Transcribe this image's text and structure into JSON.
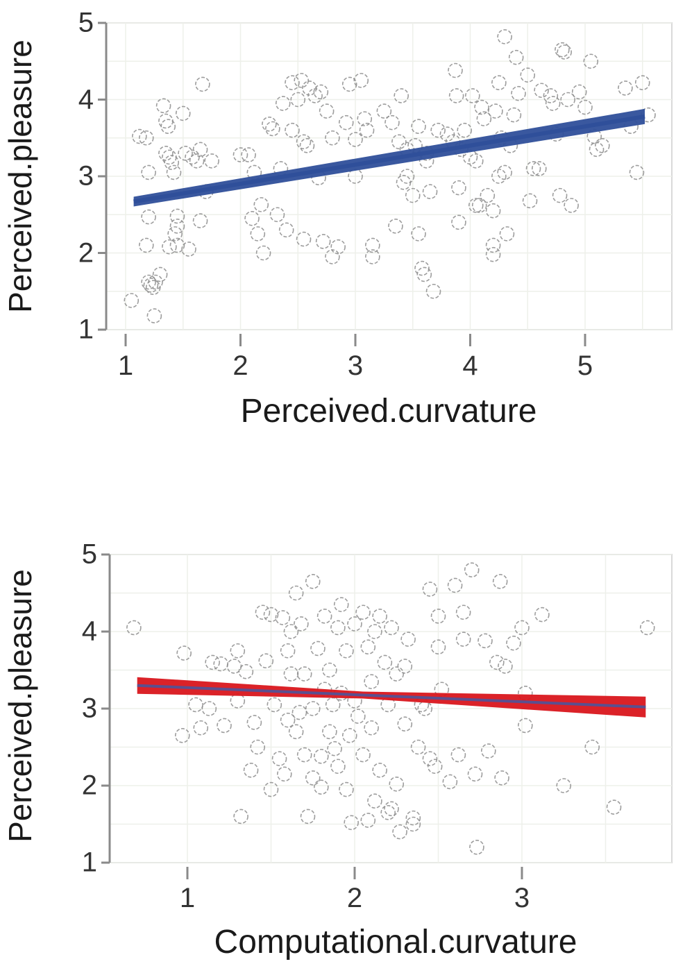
{
  "chart_data": [
    {
      "type": "scatter",
      "title": "",
      "xlabel": "Perceived.curvature",
      "ylabel": "Perceived.pleasure",
      "xlim": [
        0.85,
        5.75
      ],
      "ylim": [
        1,
        5
      ],
      "xticks": [
        "1",
        "2",
        "3",
        "4",
        "5"
      ],
      "yticks": [
        "1",
        "2",
        "3",
        "4",
        "5"
      ],
      "grid": true,
      "marker": "hollow-circle",
      "marker_color": "#8c8c8c",
      "fit_line": {
        "x": [
          1.07,
          5.52
        ],
        "y": [
          2.67,
          3.78
        ],
        "color": "#2f4f9a",
        "ci_color": "#2f4f9a"
      },
      "points": [
        [
          1.05,
          1.38
        ],
        [
          1.12,
          3.52
        ],
        [
          1.18,
          3.5
        ],
        [
          1.2,
          3.05
        ],
        [
          1.18,
          2.1
        ],
        [
          1.2,
          2.47
        ],
        [
          1.2,
          1.62
        ],
        [
          1.22,
          1.58
        ],
        [
          1.24,
          1.55
        ],
        [
          1.26,
          1.62
        ],
        [
          1.25,
          1.18
        ],
        [
          1.3,
          1.72
        ],
        [
          1.33,
          3.92
        ],
        [
          1.35,
          3.72
        ],
        [
          1.37,
          3.65
        ],
        [
          1.38,
          3.25
        ],
        [
          1.35,
          3.3
        ],
        [
          1.4,
          3.18
        ],
        [
          1.42,
          3.05
        ],
        [
          1.38,
          2.08
        ],
        [
          1.45,
          2.35
        ],
        [
          1.45,
          2.48
        ],
        [
          1.43,
          2.25
        ],
        [
          1.45,
          2.1
        ],
        [
          1.5,
          3.82
        ],
        [
          1.52,
          3.3
        ],
        [
          1.55,
          2.05
        ],
        [
          1.58,
          3.25
        ],
        [
          1.62,
          3.2
        ],
        [
          1.65,
          3.35
        ],
        [
          1.65,
          2.42
        ],
        [
          1.67,
          4.2
        ],
        [
          1.7,
          2.8
        ],
        [
          1.75,
          3.2
        ],
        [
          2.0,
          3.28
        ],
        [
          2.07,
          3.28
        ],
        [
          2.1,
          2.45
        ],
        [
          2.12,
          3.05
        ],
        [
          2.15,
          2.25
        ],
        [
          2.18,
          2.63
        ],
        [
          2.2,
          2.0
        ],
        [
          2.25,
          3.68
        ],
        [
          2.28,
          3.62
        ],
        [
          2.32,
          2.5
        ],
        [
          2.35,
          3.1
        ],
        [
          2.37,
          3.95
        ],
        [
          2.4,
          2.3
        ],
        [
          2.45,
          3.6
        ],
        [
          2.45,
          4.22
        ],
        [
          2.5,
          4.0
        ],
        [
          2.53,
          4.25
        ],
        [
          2.55,
          3.45
        ],
        [
          2.55,
          2.18
        ],
        [
          2.58,
          3.4
        ],
        [
          2.6,
          4.15
        ],
        [
          2.65,
          4.05
        ],
        [
          2.68,
          2.98
        ],
        [
          2.7,
          4.1
        ],
        [
          2.72,
          2.15
        ],
        [
          2.75,
          3.85
        ],
        [
          2.8,
          3.5
        ],
        [
          2.8,
          1.95
        ],
        [
          2.85,
          2.08
        ],
        [
          2.92,
          3.7
        ],
        [
          2.95,
          4.2
        ],
        [
          3.0,
          3.48
        ],
        [
          3.0,
          3.0
        ],
        [
          3.05,
          4.25
        ],
        [
          3.08,
          3.75
        ],
        [
          3.1,
          3.6
        ],
        [
          3.15,
          2.1
        ],
        [
          3.15,
          1.95
        ],
        [
          3.25,
          3.85
        ],
        [
          3.32,
          3.7
        ],
        [
          3.35,
          2.35
        ],
        [
          3.38,
          3.45
        ],
        [
          3.4,
          4.05
        ],
        [
          3.42,
          2.92
        ],
        [
          3.45,
          3.35
        ],
        [
          3.45,
          3.0
        ],
        [
          3.5,
          2.75
        ],
        [
          3.52,
          3.4
        ],
        [
          3.55,
          3.65
        ],
        [
          3.55,
          2.25
        ],
        [
          3.58,
          1.8
        ],
        [
          3.6,
          1.72
        ],
        [
          3.62,
          3.3
        ],
        [
          3.62,
          3.2
        ],
        [
          3.65,
          2.8
        ],
        [
          3.68,
          1.5
        ],
        [
          3.72,
          3.6
        ],
        [
          3.8,
          3.55
        ],
        [
          3.85,
          3.45
        ],
        [
          3.87,
          4.38
        ],
        [
          3.88,
          4.05
        ],
        [
          3.9,
          2.85
        ],
        [
          3.9,
          2.4
        ],
        [
          3.92,
          3.35
        ],
        [
          3.95,
          3.6
        ],
        [
          4.0,
          3.25
        ],
        [
          4.02,
          4.05
        ],
        [
          4.05,
          2.62
        ],
        [
          4.05,
          3.2
        ],
        [
          4.08,
          2.62
        ],
        [
          4.1,
          3.9
        ],
        [
          4.12,
          3.75
        ],
        [
          4.15,
          2.75
        ],
        [
          4.2,
          2.55
        ],
        [
          4.2,
          2.1
        ],
        [
          4.2,
          1.98
        ],
        [
          4.22,
          3.85
        ],
        [
          4.25,
          4.22
        ],
        [
          4.25,
          3.0
        ],
        [
          4.27,
          3.5
        ],
        [
          4.3,
          4.82
        ],
        [
          4.3,
          3.05
        ],
        [
          4.32,
          2.25
        ],
        [
          4.35,
          3.4
        ],
        [
          4.38,
          3.8
        ],
        [
          4.4,
          4.55
        ],
        [
          4.42,
          4.08
        ],
        [
          4.5,
          4.32
        ],
        [
          4.52,
          2.68
        ],
        [
          4.55,
          3.1
        ],
        [
          4.6,
          3.1
        ],
        [
          4.62,
          4.12
        ],
        [
          4.7,
          4.05
        ],
        [
          4.72,
          3.95
        ],
        [
          4.75,
          3.55
        ],
        [
          4.78,
          2.75
        ],
        [
          4.8,
          4.65
        ],
        [
          4.82,
          4.62
        ],
        [
          4.85,
          4.0
        ],
        [
          4.88,
          2.62
        ],
        [
          4.95,
          4.1
        ],
        [
          5.0,
          3.9
        ],
        [
          5.05,
          4.5
        ],
        [
          5.08,
          3.52
        ],
        [
          5.1,
          3.35
        ],
        [
          5.15,
          3.4
        ],
        [
          5.35,
          4.15
        ],
        [
          5.4,
          3.65
        ],
        [
          5.45,
          3.05
        ],
        [
          5.5,
          4.22
        ],
        [
          5.55,
          3.8
        ]
      ]
    },
    {
      "type": "scatter",
      "title": "",
      "xlabel": "Computational.curvature",
      "ylabel": "Perceived.pleasure",
      "xlim": [
        0.54,
        3.9
      ],
      "ylim": [
        1,
        5
      ],
      "xticks": [
        "1",
        "2",
        "3"
      ],
      "yticks": [
        "1",
        "2",
        "3",
        "4",
        "5"
      ],
      "grid": true,
      "marker": "hollow-circle",
      "marker_color": "#8c8c8c",
      "fit_line": {
        "x": [
          0.7,
          3.74
        ],
        "y": [
          3.3,
          3.02
        ],
        "color": "#5b4f8f",
        "ci_color": "#d9161c"
      },
      "points": [
        [
          0.68,
          4.05
        ],
        [
          0.98,
          3.72
        ],
        [
          0.97,
          2.65
        ],
        [
          1.05,
          3.05
        ],
        [
          1.08,
          2.75
        ],
        [
          1.13,
          3.0
        ],
        [
          1.15,
          3.6
        ],
        [
          1.2,
          3.58
        ],
        [
          1.22,
          2.78
        ],
        [
          1.28,
          3.55
        ],
        [
          1.3,
          3.1
        ],
        [
          1.3,
          3.75
        ],
        [
          1.32,
          1.6
        ],
        [
          1.35,
          3.48
        ],
        [
          1.38,
          2.2
        ],
        [
          1.4,
          2.82
        ],
        [
          1.42,
          2.5
        ],
        [
          1.45,
          4.25
        ],
        [
          1.47,
          3.62
        ],
        [
          1.5,
          4.22
        ],
        [
          1.5,
          1.95
        ],
        [
          1.52,
          3.05
        ],
        [
          1.55,
          2.35
        ],
        [
          1.57,
          4.18
        ],
        [
          1.58,
          2.15
        ],
        [
          1.6,
          3.75
        ],
        [
          1.6,
          2.85
        ],
        [
          1.62,
          4.0
        ],
        [
          1.62,
          3.45
        ],
        [
          1.65,
          4.5
        ],
        [
          1.65,
          2.7
        ],
        [
          1.67,
          2.95
        ],
        [
          1.68,
          4.1
        ],
        [
          1.7,
          3.45
        ],
        [
          1.7,
          2.4
        ],
        [
          1.72,
          1.6
        ],
        [
          1.75,
          4.65
        ],
        [
          1.75,
          3.0
        ],
        [
          1.75,
          2.1
        ],
        [
          1.78,
          3.78
        ],
        [
          1.8,
          2.38
        ],
        [
          1.8,
          1.98
        ],
        [
          1.82,
          4.2
        ],
        [
          1.82,
          3.25
        ],
        [
          1.85,
          2.7
        ],
        [
          1.85,
          3.5
        ],
        [
          1.87,
          3.05
        ],
        [
          1.88,
          2.48
        ],
        [
          1.9,
          4.05
        ],
        [
          1.9,
          2.25
        ],
        [
          1.92,
          4.35
        ],
        [
          1.92,
          3.2
        ],
        [
          1.95,
          1.95
        ],
        [
          1.95,
          3.75
        ],
        [
          1.97,
          2.65
        ],
        [
          1.98,
          1.52
        ],
        [
          2.0,
          4.1
        ],
        [
          2.0,
          3.1
        ],
        [
          2.02,
          2.9
        ],
        [
          2.05,
          4.25
        ],
        [
          2.05,
          2.4
        ],
        [
          2.08,
          3.8
        ],
        [
          2.08,
          1.55
        ],
        [
          2.1,
          2.75
        ],
        [
          2.1,
          3.35
        ],
        [
          2.12,
          4.0
        ],
        [
          2.12,
          1.8
        ],
        [
          2.15,
          4.2
        ],
        [
          2.15,
          2.2
        ],
        [
          2.18,
          3.6
        ],
        [
          2.2,
          1.65
        ],
        [
          2.2,
          3.05
        ],
        [
          2.22,
          4.05
        ],
        [
          2.22,
          1.7
        ],
        [
          2.25,
          2.02
        ],
        [
          2.25,
          3.45
        ],
        [
          2.27,
          1.4
        ],
        [
          2.3,
          3.55
        ],
        [
          2.3,
          2.8
        ],
        [
          2.32,
          3.9
        ],
        [
          2.35,
          1.5
        ],
        [
          2.35,
          1.58
        ],
        [
          2.38,
          2.5
        ],
        [
          2.4,
          3.05
        ],
        [
          2.42,
          3.0
        ],
        [
          2.45,
          2.35
        ],
        [
          2.45,
          4.55
        ],
        [
          2.48,
          2.25
        ],
        [
          2.5,
          4.2
        ],
        [
          2.5,
          3.8
        ],
        [
          2.52,
          3.25
        ],
        [
          2.57,
          2.05
        ],
        [
          2.6,
          4.6
        ],
        [
          2.62,
          2.4
        ],
        [
          2.65,
          4.25
        ],
        [
          2.65,
          3.9
        ],
        [
          2.7,
          4.8
        ],
        [
          2.72,
          2.15
        ],
        [
          2.73,
          1.2
        ],
        [
          2.78,
          3.88
        ],
        [
          2.8,
          2.45
        ],
        [
          2.85,
          3.6
        ],
        [
          2.87,
          4.65
        ],
        [
          2.88,
          2.1
        ],
        [
          2.9,
          3.55
        ],
        [
          2.95,
          3.85
        ],
        [
          3.0,
          4.05
        ],
        [
          3.02,
          3.2
        ],
        [
          3.02,
          2.78
        ],
        [
          3.12,
          4.22
        ],
        [
          3.25,
          2.0
        ],
        [
          3.42,
          2.5
        ],
        [
          3.55,
          1.72
        ],
        [
          3.75,
          4.05
        ]
      ]
    }
  ]
}
